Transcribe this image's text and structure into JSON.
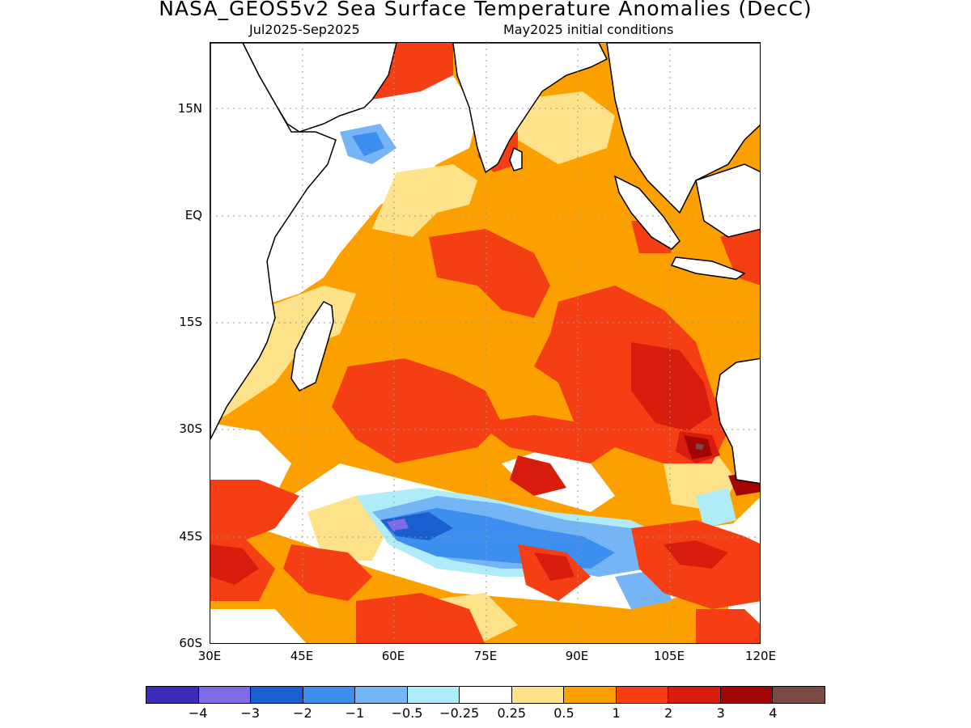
{
  "title": "NASA_GEOS5v2 Sea Surface Temperature Anomalies (DecC)",
  "subtitle_left": "Jul2025-Sep2025",
  "subtitle_right": "May2025 initial conditions",
  "lat_labels": [
    "15N",
    "EQ",
    "15S",
    "30S",
    "45S",
    "60S"
  ],
  "lon_labels": [
    "30E",
    "45E",
    "60E",
    "75E",
    "90E",
    "105E",
    "120E"
  ],
  "colorbar": {
    "labels": [
      "−4",
      "−3",
      "−2",
      "−1",
      "−0.5",
      "−0.25",
      "0.25",
      "0.5",
      "1",
      "2",
      "3",
      "4"
    ],
    "colors": [
      "#3b2dba",
      "#7e6be6",
      "#1a5fd0",
      "#3d8fef",
      "#75b4f5",
      "#b0ecf7",
      "#ffffff",
      "#fde28a",
      "#fca000",
      "#f63e14",
      "#d81d0e",
      "#a30404",
      "#7a4b42"
    ]
  }
}
